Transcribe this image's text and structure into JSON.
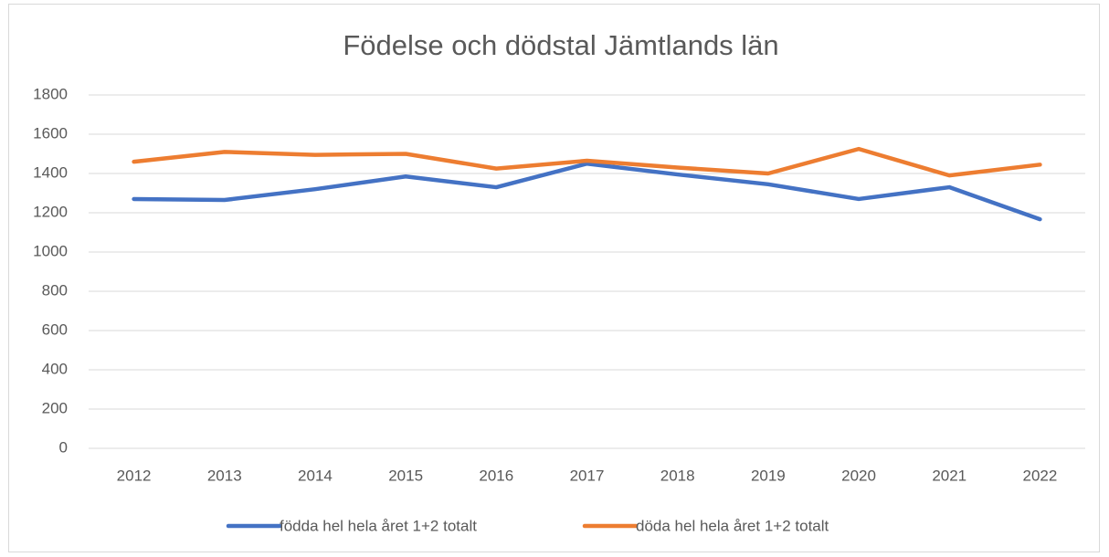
{
  "chart_data": {
    "type": "line",
    "title": "Födelse och dödstal Jämtlands län",
    "categories": [
      "2012",
      "2013",
      "2014",
      "2015",
      "2016",
      "2017",
      "2018",
      "2019",
      "2020",
      "2021",
      "2022"
    ],
    "series": [
      {
        "name": "födda hel hela året 1+2 totalt",
        "color": "#4472c4",
        "values": [
          1270,
          1265,
          1320,
          1385,
          1330,
          1450,
          1395,
          1345,
          1270,
          1330,
          1167
        ]
      },
      {
        "name": "döda hel hela året 1+2 totalt",
        "color": "#ed7d31",
        "values": [
          1460,
          1510,
          1495,
          1500,
          1425,
          1465,
          1430,
          1400,
          1525,
          1390,
          1445
        ]
      }
    ],
    "ylim": [
      0,
      1800
    ],
    "yticks": [
      0,
      200,
      400,
      600,
      800,
      1000,
      1200,
      1400,
      1600,
      1800
    ],
    "grid": true,
    "legend": "bottom"
  }
}
